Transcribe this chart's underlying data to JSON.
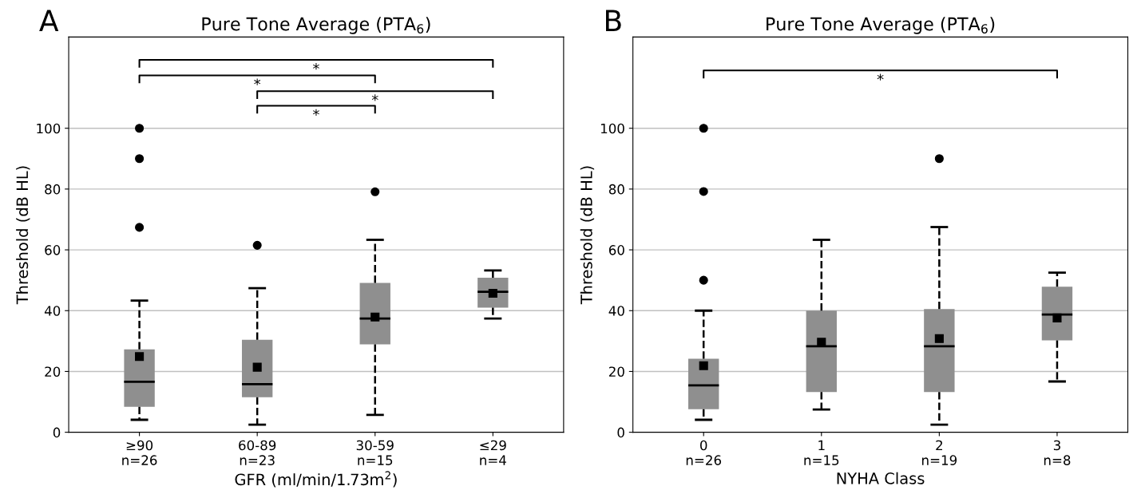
{
  "chart_data": [
    {
      "type": "box",
      "title": "Pure Tone Average (PTA$_{6}$)",
      "xlabel": "GFR (ml/min/1.73m$^{2}$)",
      "ylabel": "Threshold (dB HL)",
      "categories": [
        "≥90\nn=26",
        "60-89\nn=23",
        "30-59\nn=15",
        "≤29\nn=4"
      ],
      "color": "#8f8f8f",
      "boxes": [
        {
          "low": 4.1,
          "q1": 8.4,
          "median": 16.6,
          "q3": 27.3,
          "high": 43.3,
          "mean": 24.9,
          "outliers": [
            100,
            90,
            67.4
          ]
        },
        {
          "low": 2.5,
          "q1": 11.5,
          "median": 15.8,
          "q3": 30.4,
          "high": 47.4,
          "mean": 21.4,
          "outliers": [
            61.5
          ]
        },
        {
          "low": 5.7,
          "q1": 28.9,
          "median": 37.4,
          "q3": 49.1,
          "high": 63.3,
          "mean": 37.9,
          "outliers": [
            79.1
          ]
        },
        {
          "low": 37.4,
          "q1": 41.0,
          "median": 46.2,
          "q3": 50.8,
          "high": 53.2,
          "mean": 45.7
        }
      ],
      "ylim": [
        0,
        130
      ],
      "yticks": [
        0,
        20,
        40,
        60,
        80,
        100
      ],
      "grid": "y",
      "annotations": [
        "A",
        "*",
        "*",
        "*",
        "*"
      ]
    },
    {
      "type": "box",
      "title": "Pure Tone Average (PTA$_{6}$)",
      "xlabel": "NYHA Class",
      "ylabel": "Threshold (dB HL)",
      "categories": [
        "0\nn=26",
        "1\nn=15",
        "2\nn=19",
        "3\nn=8"
      ],
      "color": "#8f8f8f",
      "boxes": [
        {
          "low": 4.1,
          "q1": 7.6,
          "median": 15.4,
          "q3": 24.2,
          "high": 40.0,
          "mean": 21.9,
          "outliers": [
            100,
            79.2,
            50
          ]
        },
        {
          "low": 7.5,
          "q1": 13.2,
          "median": 28.3,
          "q3": 40.0,
          "high": 63.3,
          "mean": 29.6
        },
        {
          "low": 2.5,
          "q1": 13.2,
          "median": 28.3,
          "q3": 40.5,
          "high": 67.5,
          "mean": 30.8,
          "outliers": [
            90
          ]
        },
        {
          "low": 16.7,
          "q1": 30.2,
          "median": 38.7,
          "q3": 47.9,
          "high": 52.5,
          "mean": 37.6
        }
      ],
      "ylim": [
        0,
        130
      ],
      "yticks": [
        0,
        20,
        40,
        60,
        80,
        100
      ],
      "grid": "y",
      "annotations": [
        "B",
        "*"
      ]
    }
  ]
}
